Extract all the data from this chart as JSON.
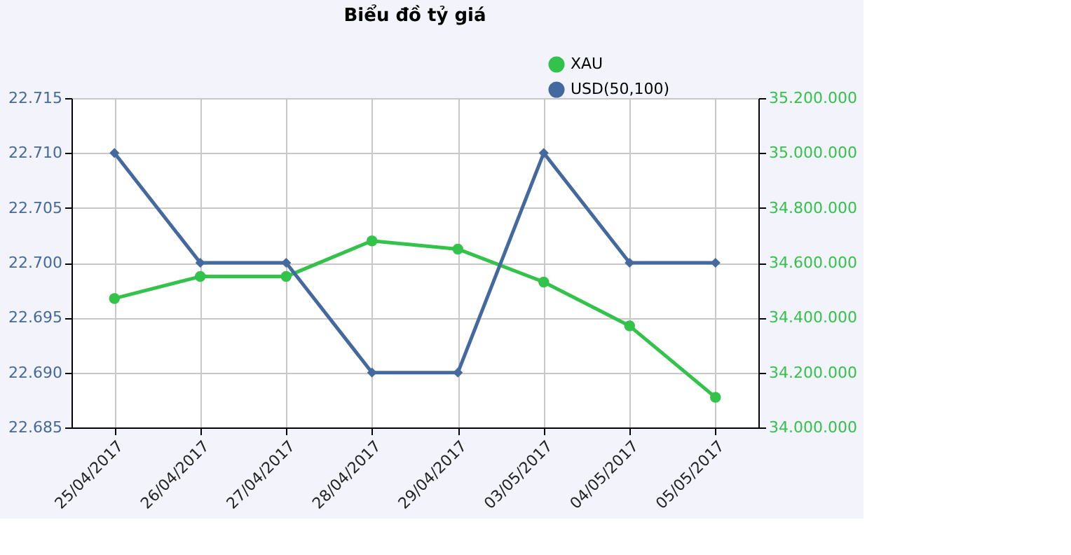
{
  "chart_data": {
    "type": "line",
    "title": "Biểu đồ tỷ giá",
    "categories": [
      "25/04/2017",
      "26/04/2017",
      "27/04/2017",
      "28/04/2017",
      "29/04/2017",
      "03/05/2017",
      "04/05/2017",
      "05/05/2017"
    ],
    "series": [
      {
        "name": "XAU",
        "color": "#33c24a",
        "axis": "y2",
        "marker": "circle",
        "values": [
          34470000,
          34550000,
          34550000,
          34680000,
          34650000,
          34530000,
          34370000,
          34110000
        ]
      },
      {
        "name": "USD(50,100)",
        "color": "#44699e",
        "marker": "diamond",
        "values": [
          22.71,
          22.7,
          22.7,
          22.69,
          22.69,
          22.71,
          22.7,
          22.7
        ]
      }
    ],
    "ylim": [
      22.685,
      22.715
    ],
    "yticks": [
      22.685,
      {
        "value": 22.69,
        "label": "22.690"
      },
      22.695,
      {
        "value": 22.7,
        "label": "22.700"
      },
      22.705,
      {
        "value": 22.71,
        "label": "22.710"
      },
      22.715
    ],
    "y2lim": [
      34000000,
      35200000
    ],
    "y2ticks": [
      {
        "value": 34000000,
        "label": "34.000.000"
      },
      {
        "value": 34200000,
        "label": "34.200.000"
      },
      {
        "value": 34400000,
        "label": "34.400.000"
      },
      {
        "value": 34600000,
        "label": "34.600.000"
      },
      {
        "value": 34800000,
        "label": "34.800.000"
      },
      {
        "value": 35000000,
        "label": "35.000.000"
      },
      {
        "value": 35200000,
        "label": "35.200.000"
      }
    ],
    "grid": true,
    "legend": "top right"
  }
}
